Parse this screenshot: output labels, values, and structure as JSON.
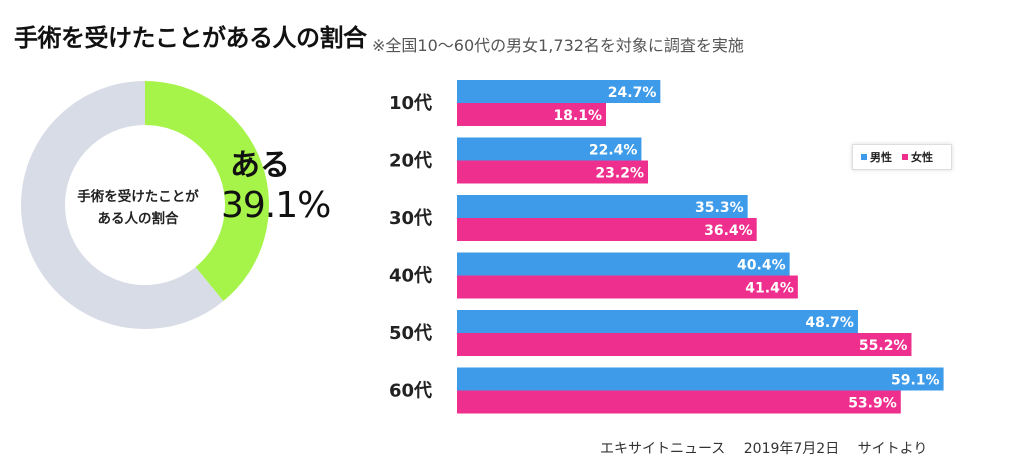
{
  "header": {
    "title": "手術を受けたことがある人の割合",
    "note": "※全国10〜60代の男女1,732名を対象に調査を実施"
  },
  "donut": {
    "center_line1": "手術を受けたことが",
    "center_line2": "ある人の割合",
    "highlight_label": "ある",
    "highlight_value": "39.1%"
  },
  "source": "エキサイトニュース　 2019年7月2日　 サイトより",
  "legend": {
    "male": "男性",
    "female": "女性"
  },
  "colors": {
    "male": "#3d9bea",
    "female": "#ee2f8e",
    "donut_yes": "#a6f34a",
    "donut_rest": "#d8dce6"
  },
  "chart_data": [
    {
      "type": "pie",
      "title": "手術を受けたことがある人の割合",
      "slices": [
        {
          "label": "ある",
          "value": 39.1
        },
        {
          "label": "",
          "value": 60.9
        }
      ]
    },
    {
      "type": "bar",
      "orientation": "horizontal",
      "categories": [
        "10代",
        "20代",
        "30代",
        "40代",
        "50代",
        "60代"
      ],
      "series": [
        {
          "name": "男性",
          "values": [
            24.7,
            22.4,
            35.3,
            40.4,
            48.7,
            59.1
          ]
        },
        {
          "name": "女性",
          "values": [
            18.1,
            23.2,
            36.4,
            41.4,
            55.2,
            53.9
          ]
        }
      ],
      "xlim": [
        0,
        60
      ],
      "legend_position": "top-right",
      "grid": false
    }
  ]
}
